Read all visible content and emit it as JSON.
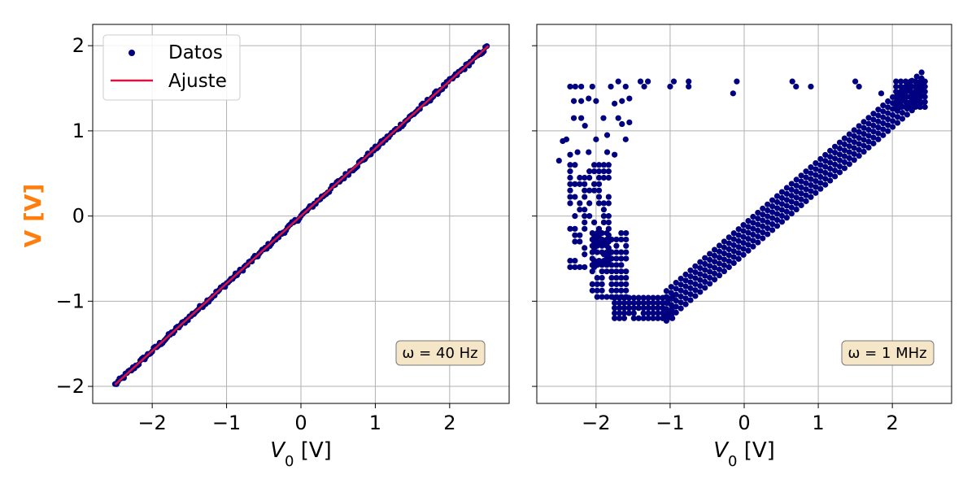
{
  "figure": {
    "ylabel": "V [V]",
    "ylabel_color": "#ff7f0e",
    "marker_color": "#000080",
    "fit_color": "#dc143c",
    "grid_color": "#b0b0b0",
    "annotation_bg": "#f5e6c8"
  },
  "chart_data": [
    {
      "type": "scatter",
      "xlabel_main": "V",
      "xlabel_sub": "0",
      "xlabel_unit": " [V]",
      "xlim": [
        -2.8,
        2.8
      ],
      "ylim": [
        -2.2,
        2.25
      ],
      "xticks": [
        -2,
        -1,
        0,
        1,
        2
      ],
      "yticks": [
        -2,
        -1,
        0,
        1,
        2
      ],
      "xtick_labels": [
        "−2",
        "−1",
        "0",
        "1",
        "2"
      ],
      "ytick_labels": [
        "−2",
        "−1",
        "0",
        "1",
        "2"
      ],
      "grid": true,
      "annotation": "ω = 40 Hz",
      "legend": {
        "position": "top-left",
        "entries": [
          {
            "label": "Datos",
            "kind": "marker"
          },
          {
            "label": "Ajuste",
            "kind": "line"
          }
        ]
      },
      "series": [
        {
          "name": "Datos",
          "mode": "markers",
          "relation": "linear",
          "x_range": [
            -2.5,
            2.52
          ],
          "slope": 0.792,
          "intercept": 0.0
        },
        {
          "name": "Ajuste",
          "mode": "line",
          "x": [
            -2.5,
            2.52
          ],
          "y": [
            -1.98,
            1.998
          ]
        }
      ]
    },
    {
      "type": "scatter",
      "xlabel_main": "V",
      "xlabel_sub": "0",
      "xlabel_unit": " [V]",
      "xlim": [
        -2.8,
        2.8
      ],
      "ylim": [
        -2.2,
        2.25
      ],
      "xticks": [
        -2,
        -1,
        0,
        1,
        2
      ],
      "yticks": [
        -2,
        -1,
        0,
        1,
        2
      ],
      "xtick_labels": [
        "−2",
        "−1",
        "0",
        "1",
        "2"
      ],
      "ytick_labels": [
        "",
        "",
        "",
        "",
        ""
      ],
      "grid": true,
      "annotation": "ω = 1 MHz",
      "series": [
        {
          "name": "",
          "mode": "markers",
          "relation": "scattered",
          "clusters": [
            {
              "comment_x": "top isolated",
              "points": [
                [
                  -2.35,
                  1.52
                ],
                [
                  -2.28,
                  1.52
                ],
                [
                  -2.2,
                  1.52
                ],
                [
                  -2.05,
                  1.52
                ],
                [
                  -1.8,
                  1.52
                ],
                [
                  -1.7,
                  1.58
                ],
                [
                  -1.6,
                  1.52
                ],
                [
                  -1.4,
                  1.58
                ],
                [
                  -1.35,
                  1.52
                ],
                [
                  -1.3,
                  1.58
                ],
                [
                  -1.0,
                  1.52
                ],
                [
                  -0.95,
                  1.58
                ],
                [
                  -0.75,
                  1.58
                ],
                [
                  -0.75,
                  1.52
                ],
                [
                  -0.15,
                  1.44
                ],
                [
                  -0.1,
                  1.58
                ],
                [
                  0.65,
                  1.58
                ],
                [
                  0.7,
                  1.52
                ],
                [
                  0.9,
                  1.52
                ],
                [
                  1.5,
                  1.58
                ],
                [
                  1.55,
                  1.52
                ],
                [
                  1.85,
                  1.44
                ]
              ]
            },
            {
              "comment_x": "left upper blob",
              "points": [
                [
                  -2.3,
                  1.35
                ],
                [
                  -2.2,
                  1.35
                ],
                [
                  -2.1,
                  1.38
                ],
                [
                  -2.0,
                  1.35
                ],
                [
                  -1.65,
                  1.35
                ],
                [
                  -1.55,
                  1.38
                ],
                [
                  -1.75,
                  1.32
                ],
                [
                  -2.3,
                  1.15
                ],
                [
                  -2.2,
                  1.15
                ],
                [
                  -2.15,
                  1.06
                ],
                [
                  -1.9,
                  1.15
                ],
                [
                  -1.7,
                  1.15
                ],
                [
                  -1.65,
                  1.08
                ],
                [
                  -1.55,
                  1.1
                ],
                [
                  -2.4,
                  0.9
                ],
                [
                  -2.45,
                  0.88
                ],
                [
                  -2.0,
                  0.9
                ],
                [
                  -1.85,
                  0.95
                ],
                [
                  -1.6,
                  0.9
                ],
                [
                  -2.5,
                  0.65
                ],
                [
                  -2.35,
                  0.72
                ],
                [
                  -2.25,
                  0.75
                ],
                [
                  -2.1,
                  0.75
                ],
                [
                  -1.85,
                  0.75
                ],
                [
                  -1.75,
                  0.72
                ]
              ]
            },
            {
              "comment_x": "left column",
              "band": {
                "x_from": -2.35,
                "x_to": -1.8,
                "y_from": -0.6,
                "y_to": 0.6,
                "dx": 0.065,
                "dy": 0.075,
                "density": 0.55
              }
            },
            {
              "comment_x": "left bottom",
              "band": {
                "x_from": -2.05,
                "x_to": -1.55,
                "y_from": -0.95,
                "y_to": -0.2,
                "dx": 0.065,
                "dy": 0.075,
                "density": 0.85
              }
            },
            {
              "comment_x": "trough",
              "band": {
                "x_from": -1.75,
                "x_to": -0.95,
                "y_from": -1.2,
                "y_to": -0.95,
                "dx": 0.065,
                "dy": 0.06,
                "density": 0.9
              }
            }
          ],
          "arm": {
            "x_from": -1.05,
            "x_to": 2.4,
            "y_from": -1.02,
            "y_to": 1.55,
            "thickness": 0.42,
            "dx": 0.065,
            "dy": 0.07
          },
          "top_right": {
            "x_from": 2.05,
            "x_to": 2.45,
            "y_from": 1.28,
            "y_to": 1.6,
            "dx": 0.065,
            "dy": 0.06
          }
        }
      ]
    }
  ]
}
